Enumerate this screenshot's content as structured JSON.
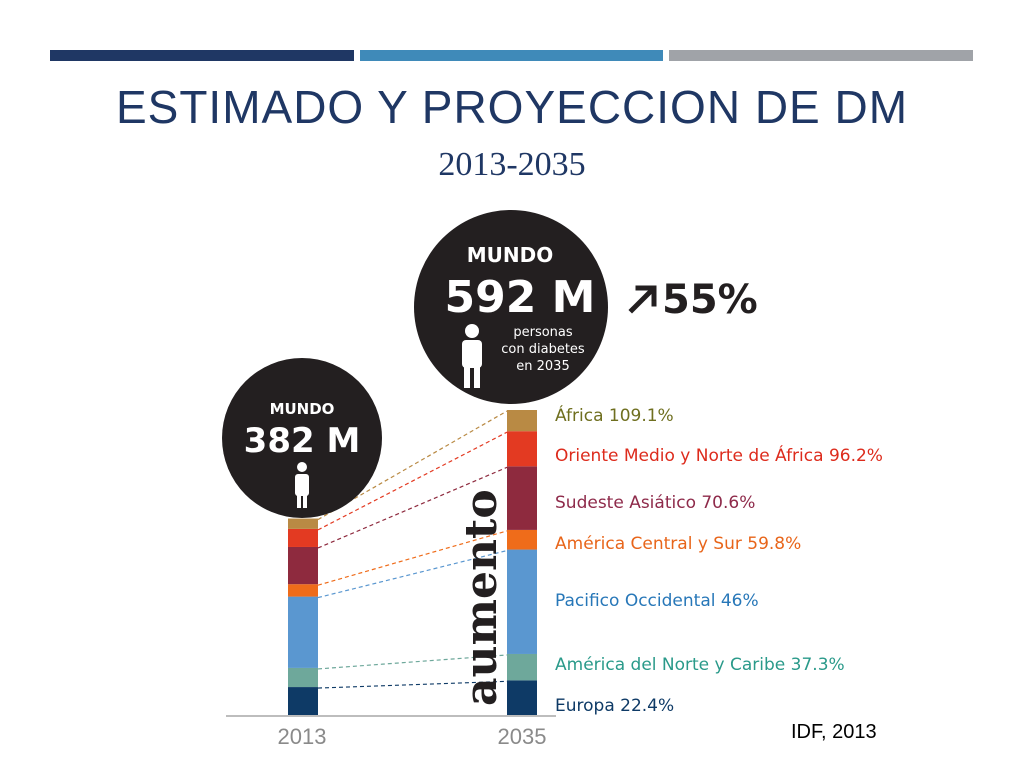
{
  "slide": {
    "title": "ESTIMADO Y PROYECCION DE DM",
    "subtitle": "2013-2035",
    "source": "IDF, 2013"
  },
  "chart_data": {
    "type": "bar",
    "stacked": true,
    "categories": [
      "2013",
      "2035"
    ],
    "totals_label": [
      "382 M",
      "592 M"
    ],
    "world_label": "MUNDO",
    "bubble_caption": [
      "personas",
      "con diabetes",
      "en 2035"
    ],
    "growth_label": "55%",
    "vertical_label": "aumento",
    "series": [
      {
        "name": "Europa",
        "values": [
          56,
          69
        ],
        "color": "#0e3a66",
        "increase_label": "Europa 22.4%",
        "label_color": "#0e3a66"
      },
      {
        "name": "América del Norte y Caribe",
        "values": [
          37,
          51
        ],
        "color": "#6ea89b",
        "increase_label": "América del Norte y Caribe  37.3%",
        "label_color": "#2a9a8a"
      },
      {
        "name": "Pacifico Occidental",
        "values": [
          138,
          202
        ],
        "color": "#5a97d0",
        "increase_label": "Pacifico Occidental 46%",
        "label_color": "#2777b8"
      },
      {
        "name": "América Central y Sur",
        "values": [
          24,
          38
        ],
        "color": "#ef6c1a",
        "increase_label": "América Central y Sur 59.8%",
        "label_color": "#e8651a"
      },
      {
        "name": "Sudeste Asiático",
        "values": [
          72,
          123
        ],
        "color": "#8e2a3e",
        "increase_label": "Sudeste Asiático 70.6%",
        "label_color": "#8e2a4a"
      },
      {
        "name": "Oriente Medio y Norte de África",
        "values": [
          35,
          68
        ],
        "color": "#e33a22",
        "increase_label": "Oriente Medio y Norte de África 96.2%",
        "label_color": "#dd2b1c"
      },
      {
        "name": "África",
        "values": [
          20,
          41
        ],
        "color": "#b98a44",
        "increase_label": "África 109.1%",
        "label_color": "#6f6f1f"
      }
    ],
    "ylim": [
      0,
      592
    ]
  }
}
